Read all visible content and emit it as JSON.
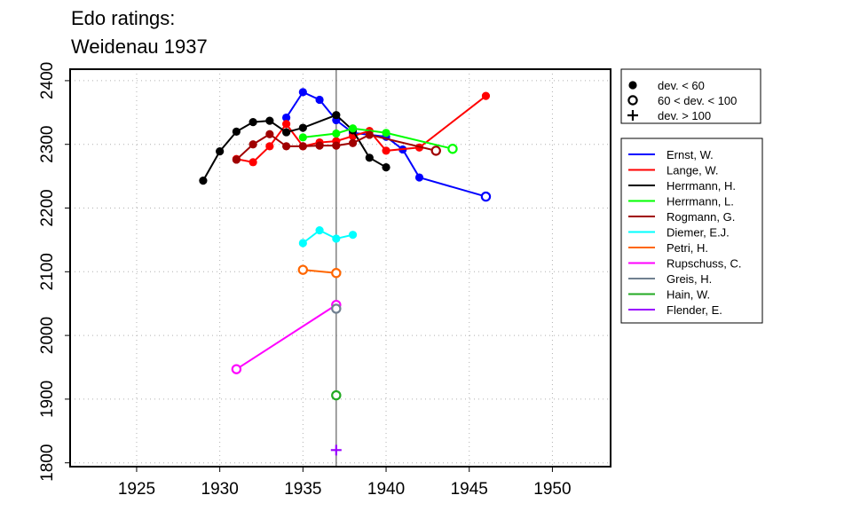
{
  "title_lines": [
    "Edo ratings:",
    "Weidenau 1937"
  ],
  "chart_data": {
    "type": "line",
    "title": "Edo ratings: Weidenau 1937",
    "xlabel": "",
    "ylabel": "",
    "xlim": [
      1921,
      1953.5
    ],
    "ylim": [
      1794,
      2418
    ],
    "x_ticks": [
      1925,
      1930,
      1935,
      1940,
      1945,
      1950
    ],
    "y_ticks": [
      1800,
      1900,
      2000,
      2100,
      2200,
      2300,
      2400
    ],
    "grid": true,
    "reference_line": {
      "x": 1937,
      "color": "#808080"
    },
    "symbol_legend": [
      {
        "symbol": "filled-circle",
        "label": "dev. < 60"
      },
      {
        "symbol": "open-circle",
        "label": "60 < dev. < 100"
      },
      {
        "symbol": "plus",
        "label": "dev. > 100"
      }
    ],
    "series": [
      {
        "name": "Ernst, W.",
        "color": "#0000ff",
        "points": [
          {
            "x": 1934,
            "y": 2342,
            "m": "f"
          },
          {
            "x": 1935,
            "y": 2382,
            "m": "f"
          },
          {
            "x": 1936,
            "y": 2370,
            "m": "f"
          },
          {
            "x": 1937,
            "y": 2338,
            "m": "f"
          },
          {
            "x": 1938,
            "y": 2318,
            "m": "f"
          },
          {
            "x": 1940,
            "y": 2312,
            "m": "f"
          },
          {
            "x": 1941,
            "y": 2292,
            "m": "f"
          },
          {
            "x": 1942,
            "y": 2248,
            "m": "f"
          },
          {
            "x": 1946,
            "y": 2218,
            "m": "o"
          }
        ]
      },
      {
        "name": "Lange, W.",
        "color": "#ff0000",
        "points": [
          {
            "x": 1931,
            "y": 2277,
            "m": "f"
          },
          {
            "x": 1932,
            "y": 2272,
            "m": "f"
          },
          {
            "x": 1933,
            "y": 2297,
            "m": "f"
          },
          {
            "x": 1934,
            "y": 2332,
            "m": "f"
          },
          {
            "x": 1935,
            "y": 2297,
            "m": "f"
          },
          {
            "x": 1936,
            "y": 2303,
            "m": "f"
          },
          {
            "x": 1937,
            "y": 2305,
            "m": "f"
          },
          {
            "x": 1938,
            "y": 2313,
            "m": "f"
          },
          {
            "x": 1939,
            "y": 2321,
            "m": "f"
          },
          {
            "x": 1940,
            "y": 2290,
            "m": "f"
          },
          {
            "x": 1942,
            "y": 2295,
            "m": "f"
          },
          {
            "x": 1946,
            "y": 2376,
            "m": "f"
          }
        ]
      },
      {
        "name": "Herrmann, H.",
        "color": "#000000",
        "points": [
          {
            "x": 1929,
            "y": 2243,
            "m": "f"
          },
          {
            "x": 1930,
            "y": 2289,
            "m": "f"
          },
          {
            "x": 1931,
            "y": 2320,
            "m": "f"
          },
          {
            "x": 1932,
            "y": 2335,
            "m": "f"
          },
          {
            "x": 1933,
            "y": 2337,
            "m": "f"
          },
          {
            "x": 1934,
            "y": 2319,
            "m": "f"
          },
          {
            "x": 1935,
            "y": 2326,
            "m": "f"
          },
          {
            "x": 1937,
            "y": 2346,
            "m": "f"
          },
          {
            "x": 1938,
            "y": 2322,
            "m": "f"
          },
          {
            "x": 1939,
            "y": 2279,
            "m": "f"
          },
          {
            "x": 1940,
            "y": 2264,
            "m": "f"
          }
        ]
      },
      {
        "name": "Herrmann, L.",
        "color": "#00ff00",
        "points": [
          {
            "x": 1935,
            "y": 2311,
            "m": "f"
          },
          {
            "x": 1937,
            "y": 2317,
            "m": "f"
          },
          {
            "x": 1938,
            "y": 2325,
            "m": "f"
          },
          {
            "x": 1940,
            "y": 2318,
            "m": "f"
          },
          {
            "x": 1944,
            "y": 2293,
            "m": "o"
          }
        ]
      },
      {
        "name": "Rogmann, G.",
        "color": "#a00000",
        "points": [
          {
            "x": 1931,
            "y": 2276,
            "m": "f"
          },
          {
            "x": 1932,
            "y": 2300,
            "m": "f"
          },
          {
            "x": 1933,
            "y": 2316,
            "m": "f"
          },
          {
            "x": 1934,
            "y": 2297,
            "m": "f"
          },
          {
            "x": 1935,
            "y": 2297,
            "m": "f"
          },
          {
            "x": 1936,
            "y": 2298,
            "m": "f"
          },
          {
            "x": 1937,
            "y": 2298,
            "m": "f"
          },
          {
            "x": 1938,
            "y": 2302,
            "m": "f"
          },
          {
            "x": 1939,
            "y": 2315,
            "m": "f"
          },
          {
            "x": 1943,
            "y": 2290,
            "m": "o"
          }
        ]
      },
      {
        "name": "Diemer, E.J.",
        "color": "#00ffff",
        "points": [
          {
            "x": 1935,
            "y": 2145,
            "m": "f"
          },
          {
            "x": 1936,
            "y": 2165,
            "m": "f"
          },
          {
            "x": 1937,
            "y": 2152,
            "m": "f"
          },
          {
            "x": 1938,
            "y": 2158,
            "m": "f"
          }
        ]
      },
      {
        "name": "Petri, H.",
        "color": "#ff6600",
        "points": [
          {
            "x": 1935,
            "y": 2103,
            "m": "o"
          },
          {
            "x": 1937,
            "y": 2098,
            "m": "o"
          }
        ]
      },
      {
        "name": "Rupschuss, C.",
        "color": "#ff00ff",
        "points": [
          {
            "x": 1931,
            "y": 1947,
            "m": "o"
          },
          {
            "x": 1937,
            "y": 2048,
            "m": "o"
          }
        ]
      },
      {
        "name": "Greis, H.",
        "color": "#708090",
        "points": [
          {
            "x": 1937,
            "y": 2042,
            "m": "o"
          }
        ]
      },
      {
        "name": "Hain, W.",
        "color": "#22aa22",
        "points": [
          {
            "x": 1937,
            "y": 1906,
            "m": "o"
          }
        ]
      },
      {
        "name": "Flender, E.",
        "color": "#9900ff",
        "points": [
          {
            "x": 1937,
            "y": 1820,
            "m": "p"
          }
        ]
      }
    ]
  }
}
